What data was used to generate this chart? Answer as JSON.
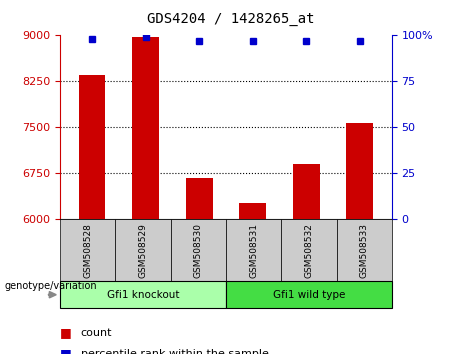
{
  "title": "GDS4204 / 1428265_at",
  "samples": [
    "GSM508528",
    "GSM508529",
    "GSM508530",
    "GSM508531",
    "GSM508532",
    "GSM508533"
  ],
  "bar_values": [
    8350,
    8980,
    6680,
    6270,
    6900,
    7580
  ],
  "percentile_values": [
    98,
    99,
    97,
    97,
    97,
    97
  ],
  "ymin": 6000,
  "ymax": 9000,
  "pmin": 0,
  "pmax": 100,
  "yticks_left": [
    6000,
    6750,
    7500,
    8250,
    9000
  ],
  "yticks_right": [
    0,
    25,
    50,
    75,
    100
  ],
  "grid_lines": [
    6750,
    7500,
    8250
  ],
  "bar_color": "#cc0000",
  "dot_color": "#0000cc",
  "groups": [
    {
      "label": "Gfi1 knockout",
      "start": 0,
      "end": 3,
      "color": "#aaffaa"
    },
    {
      "label": "Gfi1 wild type",
      "start": 3,
      "end": 6,
      "color": "#44dd44"
    }
  ],
  "legend_count_color": "#cc0000",
  "legend_pct_color": "#0000cc",
  "left_axis_color": "#cc0000",
  "right_axis_color": "#0000cc",
  "gray_box_color": "#cccccc",
  "genotype_label": "genotype/variation",
  "arrow_color": "#888888"
}
